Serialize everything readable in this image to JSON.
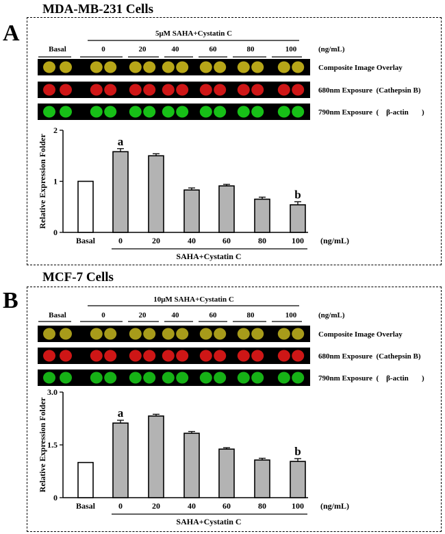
{
  "panels": [
    {
      "letter": "A",
      "cell_title": "MDA-MB-231 Cells",
      "treatment_header": "5μM SAHA+Cystatin C",
      "blot_labels": [
        "Basal",
        "0",
        "20",
        "40",
        "60",
        "80",
        "100"
      ],
      "unit_label": "(ng/mL)",
      "row_labels": [
        "Composite Image Overlay",
        "680nm Exposure  (Cathepsin B)",
        "790nm Exposure  (    β-actin       )"
      ],
      "row_colors": [
        "#c7b41a",
        "#e01818",
        "#19d019"
      ],
      "xaxis_group_label": "SAHA+Cystatin C",
      "xaxis_unit": "(ng/mL)"
    },
    {
      "letter": "B",
      "cell_title": "MCF-7 Cells",
      "treatment_header": "10μM SAHA+Cystatin C",
      "blot_labels": [
        "Basal",
        "0",
        "20",
        "40",
        "60",
        "80",
        "100"
      ],
      "unit_label": "(ng/mL)",
      "row_labels": [
        "Composite Image Overlay",
        "680nm Exposure  (Cathepsin B)",
        "790nm Exposure  (    β-actin       )"
      ],
      "row_colors": [
        "#b5a81c",
        "#e01818",
        "#18c018"
      ],
      "xaxis_group_label": "SAHA+Cystatin C",
      "xaxis_unit": "(ng/mL)"
    }
  ],
  "chart_data": [
    {
      "type": "bar",
      "title": "MDA-MB-231 Cells",
      "ylabel": "Relative Expression Folder",
      "xlabel": "SAHA+Cystatin C (ng/mL)",
      "categories": [
        "Basal",
        "0",
        "20",
        "40",
        "60",
        "80",
        "100"
      ],
      "values": [
        1.0,
        1.58,
        1.5,
        0.83,
        0.91,
        0.65,
        0.54
      ],
      "errors": [
        0,
        0.06,
        0.04,
        0.04,
        0.03,
        0.04,
        0.06
      ],
      "bar_colors": [
        "#ffffff",
        "#b3b3b3",
        "#b3b3b3",
        "#b3b3b3",
        "#b3b3b3",
        "#b3b3b3",
        "#b3b3b3"
      ],
      "annotations": [
        {
          "category": "0",
          "text": "a"
        },
        {
          "category": "100",
          "text": "b"
        }
      ],
      "ylim": [
        0,
        2
      ],
      "yticks": [
        "0",
        "1",
        "2"
      ],
      "ytick_values": [
        0,
        1,
        2
      ]
    },
    {
      "type": "bar",
      "title": "MCF-7 Cells",
      "ylabel": "Relative Expression Folder",
      "xlabel": "SAHA+Cystatin C (ng/mL)",
      "categories": [
        "Basal",
        "0",
        "20",
        "40",
        "60",
        "80",
        "100"
      ],
      "values": [
        1.0,
        2.12,
        2.32,
        1.83,
        1.38,
        1.07,
        1.03
      ],
      "errors": [
        0,
        0.08,
        0.05,
        0.05,
        0.04,
        0.05,
        0.08
      ],
      "bar_colors": [
        "#ffffff",
        "#b3b3b3",
        "#b3b3b3",
        "#b3b3b3",
        "#b3b3b3",
        "#b3b3b3",
        "#b3b3b3"
      ],
      "annotations": [
        {
          "category": "0",
          "text": "a"
        },
        {
          "category": "100",
          "text": "b"
        }
      ],
      "ylim": [
        0,
        3
      ],
      "yticks": [
        "0",
        "1.5",
        "3.0"
      ],
      "ytick_values": [
        0,
        1.5,
        3.0
      ]
    }
  ]
}
